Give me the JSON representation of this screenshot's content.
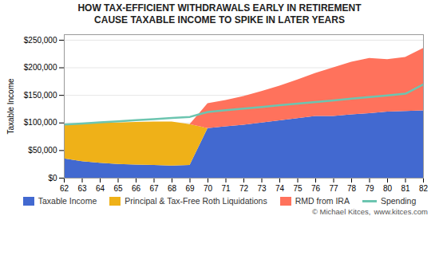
{
  "chart_data": {
    "type": "area",
    "title": "HOW TAX-EFFICIENT WITHDRAWALS EARLY IN RETIREMENT",
    "subtitle": "CAUSE TAXABLE INCOME TO SPIKE IN LATER YEARS",
    "ylabel": "Taxable Income",
    "x": [
      62,
      63,
      64,
      65,
      66,
      67,
      68,
      69,
      70,
      71,
      72,
      73,
      74,
      75,
      76,
      77,
      78,
      79,
      80,
      81,
      82
    ],
    "series": [
      {
        "name": "Taxable Income",
        "values": [
          35000,
          30000,
          27000,
          25000,
          24000,
          23000,
          22000,
          23000,
          90000,
          93000,
          96000,
          100000,
          104000,
          108000,
          112000,
          112000,
          115000,
          117000,
          120000,
          121000,
          122000
        ]
      },
      {
        "name": "Principal & Tax-Free Roth Liquidations",
        "values": [
          62000,
          68000,
          73000,
          75000,
          77000,
          79000,
          80000,
          74000,
          0,
          0,
          0,
          0,
          0,
          0,
          0,
          0,
          0,
          0,
          0,
          0,
          0
        ]
      },
      {
        "name": "RMD from IRA",
        "values": [
          0,
          0,
          0,
          0,
          0,
          0,
          0,
          0,
          45000,
          48000,
          52000,
          57000,
          63000,
          70000,
          78000,
          88000,
          95000,
          100000,
          95000,
          98000,
          113000
        ]
      },
      {
        "name": "Spending",
        "type": "line",
        "values": [
          97000,
          99000,
          101000,
          103000,
          105000,
          107000,
          109000,
          111000,
          120000,
          123000,
          126000,
          129000,
          132000,
          135000,
          138000,
          141000,
          144000,
          147000,
          150000,
          153000,
          170000
        ]
      }
    ],
    "stacked": true,
    "xlim": [
      62,
      82
    ],
    "xticks": [
      62,
      63,
      64,
      65,
      66,
      67,
      68,
      69,
      70,
      71,
      72,
      73,
      74,
      75,
      76,
      77,
      78,
      79,
      80,
      81,
      82
    ],
    "ylim": [
      0,
      260000
    ],
    "yticks": [
      {
        "value": 0,
        "label": "$0"
      },
      {
        "value": 50000,
        "label": "$50,000"
      },
      {
        "value": 100000,
        "label": "$100,000"
      },
      {
        "value": 150000,
        "label": "$150,000"
      },
      {
        "value": 200000,
        "label": "$200,000"
      },
      {
        "value": 250000,
        "label": "$250,000"
      }
    ],
    "grid": true,
    "legend": "bottom",
    "annotations": [
      "© Michael Kitces,",
      "www.kitces.com"
    ]
  }
}
